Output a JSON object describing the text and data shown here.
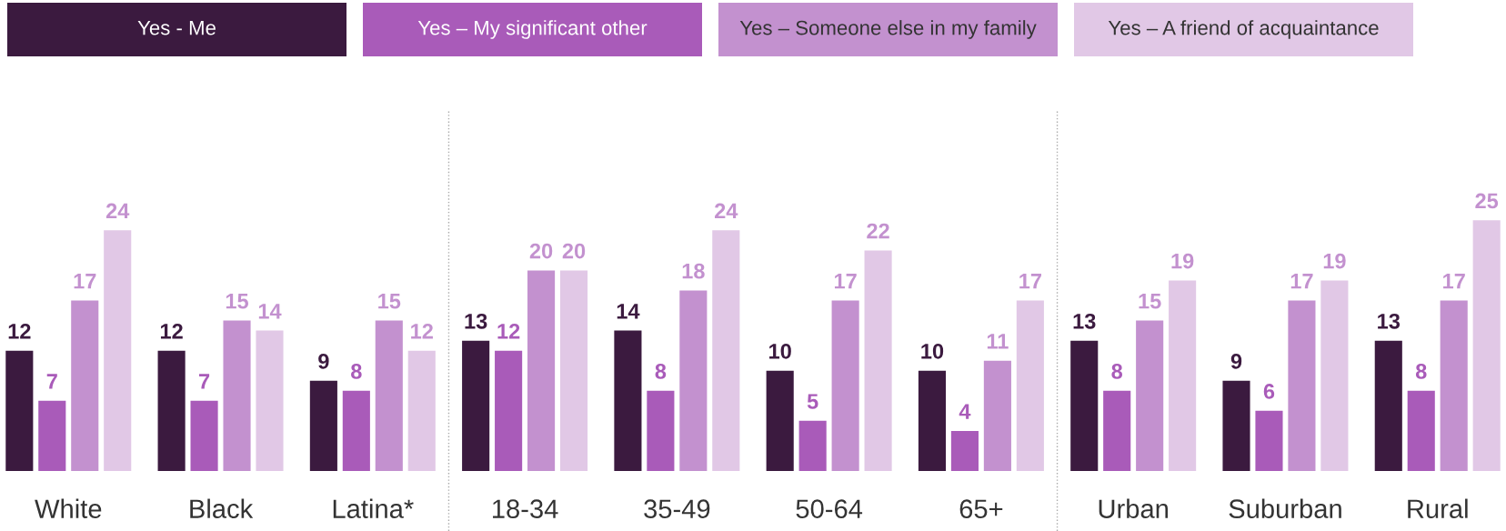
{
  "chart_data": {
    "type": "bar",
    "categories": [
      "White",
      "Black",
      "Latina*",
      "18-34",
      "35-49",
      "50-64",
      "65+",
      "Urban",
      "Suburban",
      "Rural"
    ],
    "series": [
      {
        "name": "Yes - Me",
        "color": "#3b1a3f",
        "values": [
          12,
          12,
          9,
          13,
          14,
          10,
          10,
          13,
          9,
          13
        ]
      },
      {
        "name": "Yes – My significant other",
        "color": "#a95bb9",
        "values": [
          7,
          7,
          8,
          12,
          8,
          5,
          4,
          8,
          6,
          8
        ]
      },
      {
        "name": "Yes – Someone else in my family",
        "color": "#c391cf",
        "values": [
          17,
          15,
          15,
          20,
          18,
          17,
          11,
          15,
          17,
          17
        ]
      },
      {
        "name": "Yes – A friend of acquaintance",
        "color": "#e1c8e6",
        "values": [
          24,
          14,
          12,
          20,
          24,
          22,
          17,
          19,
          19,
          25
        ]
      }
    ],
    "ylim": [
      0,
      36
    ],
    "data_labels": true,
    "legend": "top",
    "tick_labels": "x",
    "grid": false
  }
}
